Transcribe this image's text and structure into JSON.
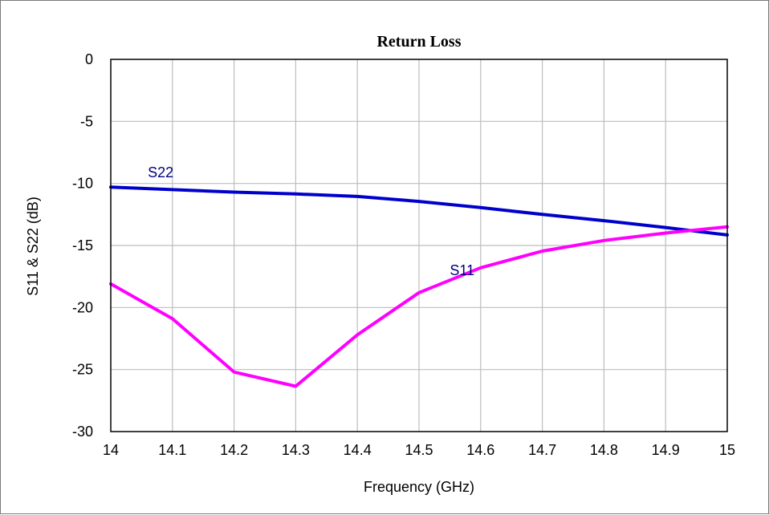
{
  "chart_data": {
    "type": "line",
    "title": "Return Loss",
    "xlabel": "Frequency (GHz)",
    "ylabel": "S11 & S22 (dB)",
    "xlim": [
      14,
      15
    ],
    "ylim": [
      -30,
      0
    ],
    "xticks": [
      "14",
      "14.1",
      "14.2",
      "14.3",
      "14.4",
      "14.5",
      "14.6",
      "14.7",
      "14.8",
      "14.9",
      "15"
    ],
    "yticks": [
      "0",
      "-5",
      "-10",
      "-15",
      "-20",
      "-25",
      "-30"
    ],
    "grid": true,
    "x": [
      14.0,
      14.1,
      14.2,
      14.3,
      14.4,
      14.5,
      14.6,
      14.7,
      14.8,
      14.9,
      15.0
    ],
    "series": [
      {
        "name": "S22",
        "color": "#0000cc",
        "values": [
          -10.3,
          -10.5,
          -10.7,
          -10.85,
          -11.05,
          -11.45,
          -11.95,
          -12.5,
          -13.0,
          -13.55,
          -14.15
        ],
        "label_at": [
          14.06,
          -9.5
        ]
      },
      {
        "name": "S11",
        "color": "#ff00ff",
        "values": [
          -18.1,
          -20.9,
          -25.2,
          -26.35,
          -22.2,
          -18.8,
          -16.8,
          -15.45,
          -14.6,
          -14.0,
          -13.5
        ],
        "label_at": [
          14.55,
          -17.4
        ]
      }
    ]
  }
}
